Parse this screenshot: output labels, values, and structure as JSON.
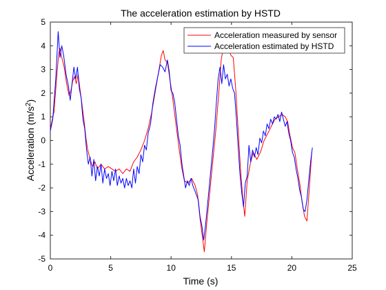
{
  "chart_data": {
    "type": "line",
    "title": "The acceleration estimation by HSTD",
    "xlabel": "Time (s)",
    "ylabel_main": "Acceleration (m/s",
    "ylabel_sup": "2",
    "ylabel_close": ")",
    "xlim": [
      0,
      25
    ],
    "ylim": [
      -5,
      5
    ],
    "xticks": [
      0,
      5,
      10,
      15,
      20,
      25
    ],
    "yticks": [
      -5,
      -4,
      -3,
      -2,
      -1,
      0,
      1,
      2,
      3,
      4,
      5
    ],
    "grid": false,
    "legend_position": "top-right",
    "series": [
      {
        "name": "Acceleration measured by sensor",
        "color": "#ff0000",
        "points": [
          [
            0.0,
            0.5
          ],
          [
            0.3,
            1.2
          ],
          [
            0.55,
            2.8
          ],
          [
            0.7,
            3.7
          ],
          [
            0.8,
            3.9
          ],
          [
            0.95,
            3.5
          ],
          [
            1.15,
            3.1
          ],
          [
            1.35,
            2.4
          ],
          [
            1.55,
            1.9
          ],
          [
            1.7,
            2.1
          ],
          [
            1.85,
            2.5
          ],
          [
            2.0,
            2.7
          ],
          [
            2.15,
            2.4
          ],
          [
            2.3,
            2.8
          ],
          [
            2.45,
            2.2
          ],
          [
            2.6,
            1.6
          ],
          [
            2.8,
            0.8
          ],
          [
            2.95,
            0.1
          ],
          [
            3.1,
            -0.4
          ],
          [
            3.3,
            -0.8
          ],
          [
            3.5,
            -1.1
          ],
          [
            3.7,
            -0.9
          ],
          [
            3.9,
            -1.2
          ],
          [
            4.2,
            -1.0
          ],
          [
            4.5,
            -1.2
          ],
          [
            4.8,
            -1.1
          ],
          [
            5.1,
            -1.2
          ],
          [
            5.4,
            -1.3
          ],
          [
            5.7,
            -1.2
          ],
          [
            6.0,
            -1.4
          ],
          [
            6.3,
            -1.2
          ],
          [
            6.6,
            -1.3
          ],
          [
            6.9,
            -0.9
          ],
          [
            7.2,
            -0.7
          ],
          [
            7.5,
            -0.4
          ],
          [
            7.8,
            0.0
          ],
          [
            8.1,
            0.5
          ],
          [
            8.4,
            1.2
          ],
          [
            8.7,
            2.1
          ],
          [
            9.0,
            3.0
          ],
          [
            9.2,
            3.6
          ],
          [
            9.35,
            3.8
          ],
          [
            9.5,
            3.4
          ],
          [
            9.7,
            3.3
          ],
          [
            9.9,
            2.6
          ],
          [
            10.1,
            1.9
          ],
          [
            10.3,
            1.1
          ],
          [
            10.5,
            0.3
          ],
          [
            10.7,
            -0.5
          ],
          [
            10.9,
            -1.2
          ],
          [
            11.1,
            -1.7
          ],
          [
            11.4,
            -1.8
          ],
          [
            11.7,
            -1.6
          ],
          [
            12.0,
            -1.9
          ],
          [
            12.2,
            -2.3
          ],
          [
            12.4,
            -3.3
          ],
          [
            12.6,
            -4.1
          ],
          [
            12.75,
            -4.7
          ],
          [
            12.95,
            -3.5
          ],
          [
            13.2,
            -2.2
          ],
          [
            13.45,
            -0.9
          ],
          [
            13.7,
            0.4
          ],
          [
            13.95,
            2.0
          ],
          [
            14.15,
            3.4
          ],
          [
            14.35,
            4.0
          ],
          [
            14.55,
            3.8
          ],
          [
            14.75,
            3.9
          ],
          [
            14.95,
            3.6
          ],
          [
            15.15,
            3.5
          ],
          [
            15.35,
            2.2
          ],
          [
            15.55,
            0.5
          ],
          [
            15.75,
            -1.2
          ],
          [
            15.95,
            -2.5
          ],
          [
            16.1,
            -3.2
          ],
          [
            16.3,
            -1.7
          ],
          [
            16.55,
            -1.0
          ],
          [
            16.8,
            -0.5
          ],
          [
            17.1,
            -0.8
          ],
          [
            17.4,
            -0.5
          ],
          [
            17.7,
            0.0
          ],
          [
            18.0,
            0.3
          ],
          [
            18.3,
            0.6
          ],
          [
            18.6,
            0.9
          ],
          [
            18.9,
            1.0
          ],
          [
            19.2,
            1.1
          ],
          [
            19.45,
            1.0
          ],
          [
            19.65,
            0.8
          ],
          [
            19.85,
            0.2
          ],
          [
            20.05,
            -0.3
          ],
          [
            20.25,
            -0.5
          ],
          [
            20.45,
            -1.2
          ],
          [
            20.65,
            -1.8
          ],
          [
            20.85,
            -2.6
          ],
          [
            21.05,
            -3.2
          ],
          [
            21.25,
            -3.4
          ],
          [
            21.45,
            -2.0
          ],
          [
            21.65,
            -0.5
          ]
        ]
      },
      {
        "name": "Acceleration estimated by HSTD",
        "color": "#0000ff",
        "points": [
          [
            0.0,
            0.4
          ],
          [
            0.2,
            0.9
          ],
          [
            0.45,
            2.6
          ],
          [
            0.65,
            4.6
          ],
          [
            0.8,
            3.5
          ],
          [
            0.95,
            4.0
          ],
          [
            1.1,
            3.6
          ],
          [
            1.3,
            2.8
          ],
          [
            1.5,
            2.3
          ],
          [
            1.65,
            1.7
          ],
          [
            1.8,
            2.4
          ],
          [
            1.95,
            3.1
          ],
          [
            2.1,
            2.6
          ],
          [
            2.25,
            3.1
          ],
          [
            2.4,
            2.2
          ],
          [
            2.55,
            1.8
          ],
          [
            2.7,
            0.9
          ],
          [
            2.85,
            0.5
          ],
          [
            3.0,
            -0.4
          ],
          [
            3.15,
            -1.0
          ],
          [
            3.3,
            -0.7
          ],
          [
            3.45,
            -1.5
          ],
          [
            3.6,
            -0.8
          ],
          [
            3.75,
            -1.7
          ],
          [
            3.9,
            -1.1
          ],
          [
            4.05,
            -1.5
          ],
          [
            4.2,
            -1.0
          ],
          [
            4.35,
            -1.8
          ],
          [
            4.5,
            -1.2
          ],
          [
            4.65,
            -1.6
          ],
          [
            4.8,
            -1.4
          ],
          [
            4.95,
            -1.9
          ],
          [
            5.1,
            -1.3
          ],
          [
            5.25,
            -1.7
          ],
          [
            5.4,
            -1.2
          ],
          [
            5.55,
            -1.9
          ],
          [
            5.7,
            -1.5
          ],
          [
            5.85,
            -1.8
          ],
          [
            6.0,
            -1.6
          ],
          [
            6.15,
            -2.0
          ],
          [
            6.3,
            -1.6
          ],
          [
            6.45,
            -1.9
          ],
          [
            6.6,
            -1.7
          ],
          [
            6.75,
            -2.0
          ],
          [
            6.9,
            -1.2
          ],
          [
            7.05,
            -1.8
          ],
          [
            7.2,
            -1.1
          ],
          [
            7.35,
            -1.4
          ],
          [
            7.5,
            -0.6
          ],
          [
            7.65,
            -0.9
          ],
          [
            7.8,
            -0.2
          ],
          [
            7.95,
            -0.4
          ],
          [
            8.1,
            0.3
          ],
          [
            8.3,
            0.7
          ],
          [
            8.5,
            1.6
          ],
          [
            8.7,
            2.2
          ],
          [
            8.9,
            2.7
          ],
          [
            9.1,
            3.2
          ],
          [
            9.3,
            3.1
          ],
          [
            9.5,
            2.9
          ],
          [
            9.7,
            3.4
          ],
          [
            9.85,
            2.9
          ],
          [
            10.0,
            2.1
          ],
          [
            10.15,
            2.0
          ],
          [
            10.3,
            1.6
          ],
          [
            10.45,
            0.9
          ],
          [
            10.6,
            0.2
          ],
          [
            10.75,
            -0.2
          ],
          [
            10.9,
            -1.0
          ],
          [
            11.05,
            -1.5
          ],
          [
            11.2,
            -2.0
          ],
          [
            11.35,
            -1.7
          ],
          [
            11.5,
            -1.9
          ],
          [
            11.65,
            -1.6
          ],
          [
            11.8,
            -1.9
          ],
          [
            11.95,
            -2.1
          ],
          [
            12.1,
            -2.3
          ],
          [
            12.25,
            -2.5
          ],
          [
            12.4,
            -3.2
          ],
          [
            12.55,
            -3.6
          ],
          [
            12.7,
            -4.2
          ],
          [
            12.85,
            -3.6
          ],
          [
            13.0,
            -2.8
          ],
          [
            13.15,
            -2.0
          ],
          [
            13.3,
            -1.2
          ],
          [
            13.45,
            -0.4
          ],
          [
            13.6,
            0.5
          ],
          [
            13.75,
            1.6
          ],
          [
            13.9,
            2.6
          ],
          [
            14.05,
            3.1
          ],
          [
            14.2,
            2.4
          ],
          [
            14.35,
            3.2
          ],
          [
            14.5,
            2.6
          ],
          [
            14.65,
            2.8
          ],
          [
            14.8,
            2.3
          ],
          [
            14.95,
            2.6
          ],
          [
            15.1,
            2.2
          ],
          [
            15.25,
            2.0
          ],
          [
            15.4,
            1.0
          ],
          [
            15.55,
            -0.2
          ],
          [
            15.7,
            -1.4
          ],
          [
            15.85,
            -2.2
          ],
          [
            16.0,
            -2.8
          ],
          [
            16.15,
            -1.8
          ],
          [
            16.3,
            -1.5
          ],
          [
            16.45,
            -0.2
          ],
          [
            16.6,
            -0.9
          ],
          [
            16.75,
            -0.4
          ],
          [
            16.9,
            -0.7
          ],
          [
            17.05,
            -0.3
          ],
          [
            17.2,
            -0.6
          ],
          [
            17.35,
            0.1
          ],
          [
            17.5,
            -0.1
          ],
          [
            17.65,
            0.4
          ],
          [
            17.8,
            0.2
          ],
          [
            17.95,
            0.7
          ],
          [
            18.1,
            0.5
          ],
          [
            18.25,
            0.9
          ],
          [
            18.4,
            0.7
          ],
          [
            18.55,
            1.0
          ],
          [
            18.7,
            0.9
          ],
          [
            18.85,
            1.1
          ],
          [
            19.0,
            0.8
          ],
          [
            19.15,
            1.2
          ],
          [
            19.3,
            0.9
          ],
          [
            19.45,
            0.6
          ],
          [
            19.6,
            0.8
          ],
          [
            19.75,
            0.3
          ],
          [
            19.9,
            0.0
          ],
          [
            20.05,
            -0.5
          ],
          [
            20.2,
            -0.7
          ],
          [
            20.35,
            -1.2
          ],
          [
            20.5,
            -1.6
          ],
          [
            20.65,
            -2.1
          ],
          [
            20.8,
            -2.4
          ],
          [
            20.95,
            -2.9
          ],
          [
            21.1,
            -3.0
          ],
          [
            21.25,
            -2.5
          ],
          [
            21.4,
            -1.7
          ],
          [
            21.55,
            -0.9
          ],
          [
            21.7,
            -0.3
          ]
        ]
      }
    ]
  }
}
